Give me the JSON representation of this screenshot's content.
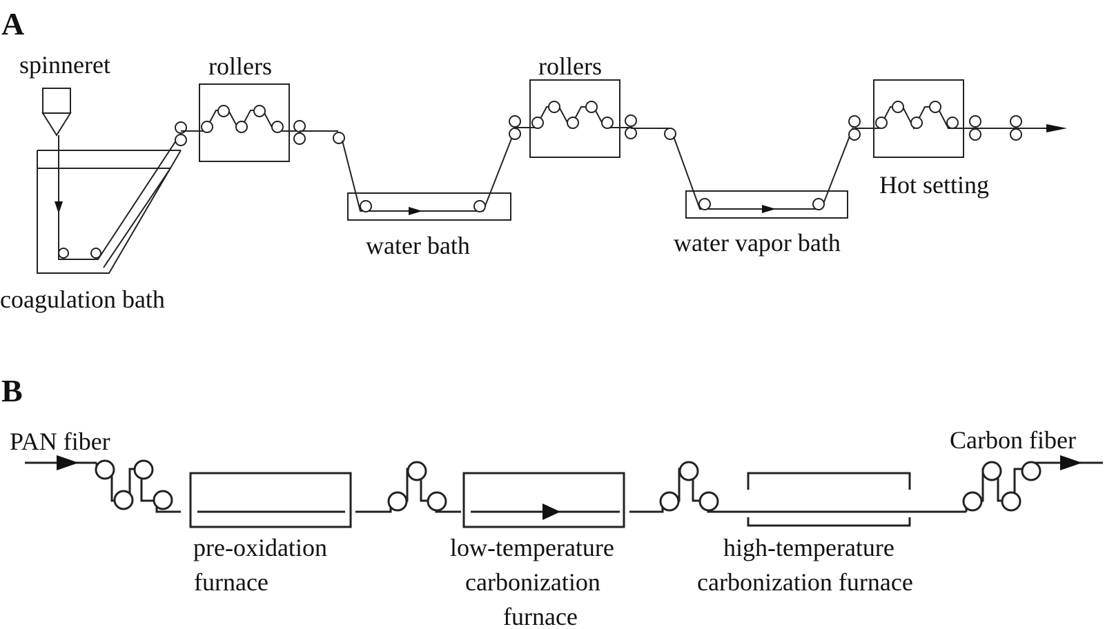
{
  "panels": {
    "a": {
      "letter": "A",
      "labels": {
        "spinneret": "spinneret",
        "rollers_1": "rollers",
        "rollers_2": "rollers",
        "coagulation_bath": "coagulation bath",
        "water_bath": "water bath",
        "water_vapor_bath": "water vapor bath",
        "hot_setting": "Hot setting"
      }
    },
    "b": {
      "letter": "B",
      "labels": {
        "pan_fiber": "PAN fiber",
        "carbon_fiber": "Carbon fiber",
        "pre_oxidation_1": "pre-oxidation",
        "pre_oxidation_2": "furnace",
        "low_temp_1": "low-temperature",
        "low_temp_2": "carbonization",
        "low_temp_3": "furnace",
        "high_temp_1": "high-temperature",
        "high_temp_2": "carbonization furnace"
      }
    }
  }
}
